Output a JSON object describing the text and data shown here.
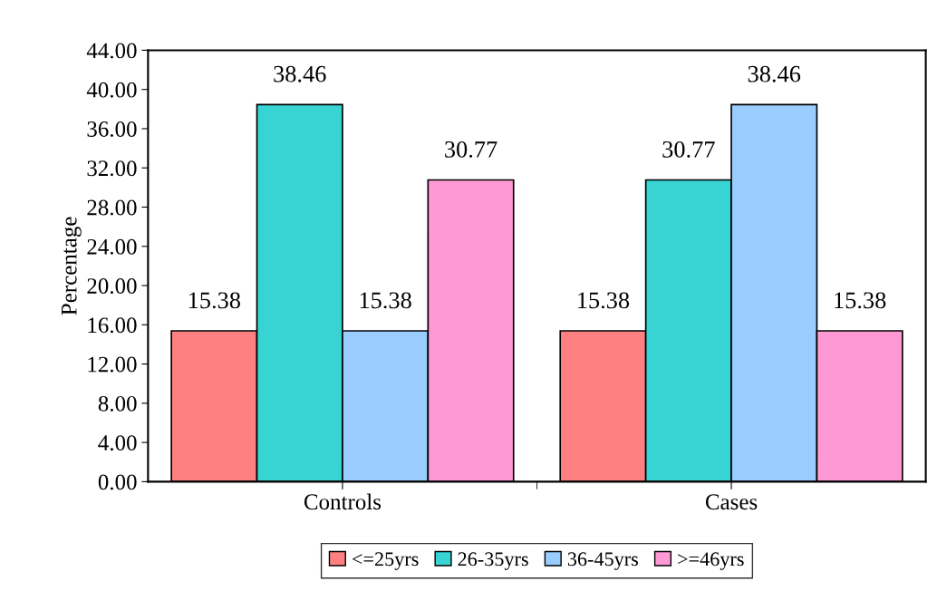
{
  "chart_data": {
    "type": "bar",
    "ylabel": "Percentage",
    "categories": [
      "Controls",
      "Cases"
    ],
    "series": [
      {
        "name": "<=25yrs",
        "color": "#ff8080",
        "values": [
          15.38,
          15.38
        ]
      },
      {
        "name": "26-35yrs",
        "color": "#38d4d4",
        "values": [
          38.46,
          30.77
        ]
      },
      {
        "name": "36-45yrs",
        "color": "#99ccff",
        "values": [
          15.38,
          38.46
        ]
      },
      {
        "name": ">=46yrs",
        "color": "#ff99d6",
        "values": [
          30.77,
          15.38
        ]
      }
    ],
    "ylim": [
      0,
      44
    ],
    "yticks": [
      {
        "value": 0,
        "label": "0.00"
      },
      {
        "value": 4,
        "label": "4.00"
      },
      {
        "value": 8,
        "label": "8.00"
      },
      {
        "value": 12,
        "label": "12.00"
      },
      {
        "value": 16,
        "label": "16.00"
      },
      {
        "value": 20,
        "label": "20.00"
      },
      {
        "value": 24,
        "label": "24.00"
      },
      {
        "value": 28,
        "label": "28.00"
      },
      {
        "value": 32,
        "label": "32.00"
      },
      {
        "value": 36,
        "label": "36.00"
      },
      {
        "value": 40,
        "label": "40.00"
      },
      {
        "value": 44,
        "label": "44.00"
      }
    ],
    "data_labels": true,
    "grid": false,
    "legend": "bottom"
  }
}
